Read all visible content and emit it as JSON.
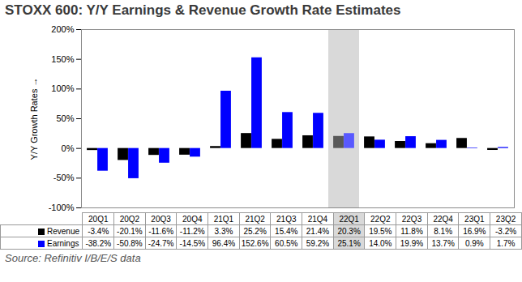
{
  "chart_data": {
    "type": "bar",
    "title": "STOXX 600: Y/Y Earnings & Revenue Growth Rate Estimates",
    "y_label": "Y/Y Growth Rates",
    "caption": "Source: Refinitiv I/B/E/S data",
    "categories": [
      "20Q1",
      "20Q2",
      "20Q3",
      "20Q4",
      "21Q1",
      "21Q2",
      "21Q3",
      "21Q4",
      "22Q1",
      "22Q2",
      "22Q3",
      "22Q4",
      "23Q1",
      "23Q2"
    ],
    "series": [
      {
        "name": "Revenue",
        "color": "#000000",
        "values": [
          -3.4,
          -20.1,
          -11.6,
          -11.2,
          3.3,
          25.2,
          15.4,
          21.4,
          20.3,
          19.5,
          11.8,
          8.1,
          16.9,
          -3.2
        ],
        "value_labels": [
          "-3.4%",
          "-20.1%",
          "-11.6%",
          "-11.2%",
          "3.3%",
          "25.2%",
          "15.4%",
          "21.4%",
          "20.3%",
          "19.5%",
          "11.8%",
          "8.1%",
          "16.9%",
          "-3.2%"
        ]
      },
      {
        "name": "Earnings",
        "color": "#0000ff",
        "values": [
          -38.2,
          -50.8,
          -24.7,
          -14.5,
          96.4,
          152.6,
          60.5,
          59.2,
          25.1,
          14.0,
          19.9,
          13.7,
          0.9,
          1.7
        ],
        "value_labels": [
          "-38.2%",
          "-50.8%",
          "-24.7%",
          "-14.5%",
          "96.4%",
          "152.6%",
          "60.5%",
          "59.2%",
          "25.1%",
          "14.0%",
          "19.9%",
          "13.7%",
          "0.9%",
          "1.7%"
        ]
      }
    ],
    "highlight": "22Q1",
    "ylim": [
      -100,
      200
    ],
    "yticks": [
      {
        "value": -100,
        "label": "-100%"
      },
      {
        "value": -50,
        "label": "-50%"
      },
      {
        "value": 0,
        "label": "0%"
      },
      {
        "value": 50,
        "label": "50%"
      },
      {
        "value": 100,
        "label": "100%"
      },
      {
        "value": 150,
        "label": "150%"
      },
      {
        "value": 200,
        "label": "200%"
      }
    ],
    "grid": false
  }
}
